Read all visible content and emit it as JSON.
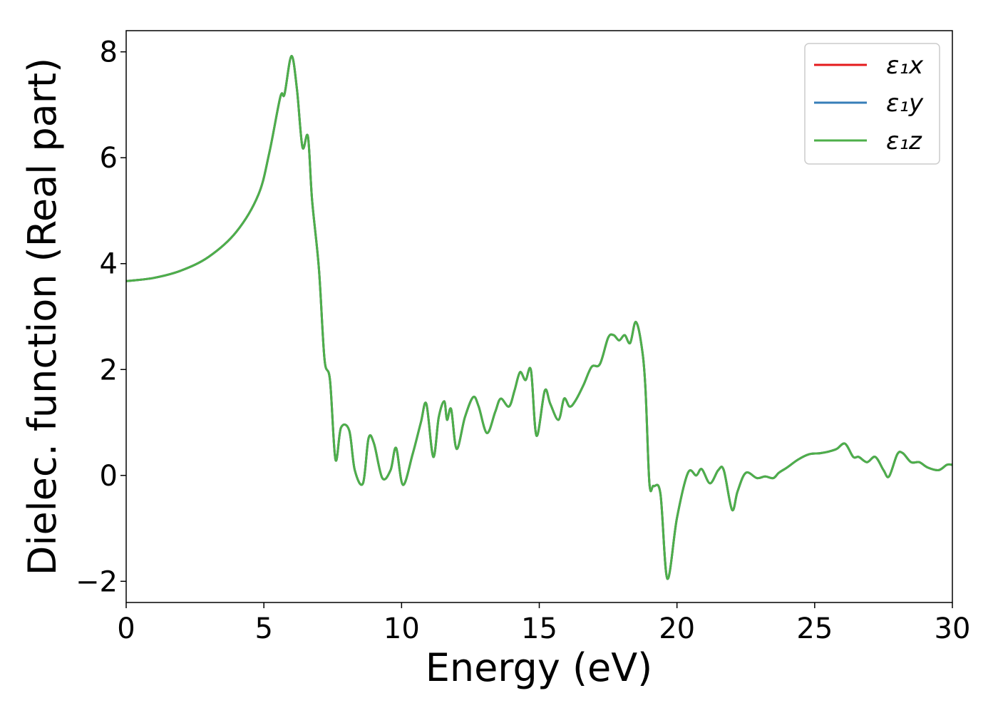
{
  "chart_data": {
    "type": "line",
    "title": "",
    "xlabel": "Energy (eV)",
    "ylabel": "Dielec. function (Real part)",
    "xlim": [
      0,
      30
    ],
    "ylim": [
      -2.4,
      8.4
    ],
    "xticks": [
      0,
      5,
      10,
      15,
      20,
      25,
      30
    ],
    "xtick_labels": [
      "0",
      "5",
      "10",
      "15",
      "20",
      "25",
      "30"
    ],
    "yticks": [
      -2,
      0,
      2,
      4,
      6,
      8
    ],
    "ytick_labels": [
      "−2",
      "0",
      "2",
      "4",
      "6",
      "8"
    ],
    "grid": false,
    "legend_position": "top-right",
    "x": [
      0,
      1,
      2,
      3,
      4,
      4.8,
      5.2,
      5.6,
      5.75,
      6.0,
      6.2,
      6.4,
      6.6,
      6.75,
      7.0,
      7.2,
      7.4,
      7.6,
      7.8,
      8.1,
      8.3,
      8.6,
      8.8,
      9.0,
      9.3,
      9.6,
      9.8,
      10.05,
      10.4,
      10.7,
      10.9,
      11.15,
      11.35,
      11.55,
      11.65,
      11.8,
      12.0,
      12.3,
      12.6,
      12.8,
      13.1,
      13.4,
      13.6,
      13.9,
      14.1,
      14.3,
      14.5,
      14.7,
      14.9,
      15.2,
      15.4,
      15.7,
      15.9,
      16.1,
      16.3,
      16.6,
      16.9,
      17.2,
      17.5,
      17.7,
      17.9,
      18.1,
      18.3,
      18.5,
      18.7,
      18.85,
      19.0,
      19.15,
      19.4,
      19.65,
      20.0,
      20.4,
      20.7,
      20.9,
      21.2,
      21.5,
      21.7,
      22.0,
      22.2,
      22.5,
      22.9,
      23.2,
      23.5,
      23.7,
      24.0,
      24.4,
      24.8,
      25.2,
      25.5,
      25.8,
      26.1,
      26.4,
      26.6,
      26.9,
      27.2,
      27.5,
      27.7,
      28.0,
      28.2,
      28.5,
      28.8,
      29.1,
      29.5,
      29.8,
      30.0
    ],
    "series": [
      {
        "name": "ε₁x",
        "color": "#e41a1c",
        "values": [
          3.67,
          3.73,
          3.87,
          4.13,
          4.6,
          5.3,
          6.1,
          7.15,
          7.2,
          7.92,
          7.3,
          6.2,
          6.4,
          5.2,
          3.9,
          2.2,
          1.8,
          0.3,
          0.9,
          0.85,
          0.1,
          -0.15,
          0.7,
          0.6,
          -0.05,
          0.1,
          0.52,
          -0.18,
          0.4,
          1.0,
          1.35,
          0.35,
          1.1,
          1.4,
          1.05,
          1.25,
          0.5,
          1.1,
          1.48,
          1.3,
          0.8,
          1.2,
          1.45,
          1.3,
          1.6,
          1.95,
          1.8,
          1.98,
          0.75,
          1.6,
          1.35,
          1.05,
          1.45,
          1.3,
          1.4,
          1.7,
          2.05,
          2.1,
          2.6,
          2.65,
          2.55,
          2.65,
          2.5,
          2.9,
          2.5,
          1.7,
          -0.15,
          -0.2,
          -0.35,
          -1.95,
          -0.8,
          0.05,
          0.0,
          0.12,
          -0.15,
          0.1,
          0.1,
          -0.65,
          -0.3,
          0.05,
          -0.05,
          -0.02,
          -0.05,
          0.05,
          0.15,
          0.3,
          0.4,
          0.42,
          0.45,
          0.5,
          0.6,
          0.35,
          0.35,
          0.25,
          0.35,
          0.1,
          -0.02,
          0.4,
          0.42,
          0.25,
          0.25,
          0.15,
          0.1,
          0.2,
          0.2
        ]
      },
      {
        "name": "ε₁y",
        "color": "#377eb8",
        "values": [
          3.67,
          3.73,
          3.87,
          4.13,
          4.6,
          5.3,
          6.1,
          7.15,
          7.2,
          7.92,
          7.3,
          6.2,
          6.4,
          5.2,
          3.9,
          2.2,
          1.8,
          0.3,
          0.9,
          0.85,
          0.1,
          -0.15,
          0.7,
          0.6,
          -0.05,
          0.1,
          0.52,
          -0.18,
          0.4,
          1.0,
          1.35,
          0.35,
          1.1,
          1.4,
          1.05,
          1.25,
          0.5,
          1.1,
          1.48,
          1.3,
          0.8,
          1.2,
          1.45,
          1.3,
          1.6,
          1.95,
          1.8,
          1.98,
          0.75,
          1.6,
          1.35,
          1.05,
          1.45,
          1.3,
          1.4,
          1.7,
          2.05,
          2.1,
          2.6,
          2.65,
          2.55,
          2.65,
          2.5,
          2.9,
          2.5,
          1.7,
          -0.15,
          -0.2,
          -0.35,
          -1.95,
          -0.8,
          0.05,
          0.0,
          0.12,
          -0.15,
          0.1,
          0.1,
          -0.65,
          -0.3,
          0.05,
          -0.05,
          -0.02,
          -0.05,
          0.05,
          0.15,
          0.3,
          0.4,
          0.42,
          0.45,
          0.5,
          0.6,
          0.35,
          0.35,
          0.25,
          0.35,
          0.1,
          -0.02,
          0.4,
          0.42,
          0.25,
          0.25,
          0.15,
          0.1,
          0.2,
          0.2
        ]
      },
      {
        "name": "ε₁z",
        "color": "#4daf4a",
        "values": [
          3.67,
          3.73,
          3.87,
          4.13,
          4.6,
          5.3,
          6.1,
          7.15,
          7.2,
          7.92,
          7.3,
          6.2,
          6.4,
          5.2,
          3.9,
          2.2,
          1.8,
          0.3,
          0.9,
          0.85,
          0.1,
          -0.15,
          0.7,
          0.6,
          -0.05,
          0.1,
          0.52,
          -0.18,
          0.4,
          1.0,
          1.35,
          0.35,
          1.1,
          1.4,
          1.05,
          1.25,
          0.5,
          1.1,
          1.48,
          1.3,
          0.8,
          1.2,
          1.45,
          1.3,
          1.6,
          1.95,
          1.8,
          1.98,
          0.75,
          1.6,
          1.35,
          1.05,
          1.45,
          1.3,
          1.4,
          1.7,
          2.05,
          2.1,
          2.6,
          2.65,
          2.55,
          2.65,
          2.5,
          2.9,
          2.5,
          1.7,
          -0.15,
          -0.2,
          -0.35,
          -1.95,
          -0.8,
          0.05,
          0.0,
          0.12,
          -0.15,
          0.1,
          0.1,
          -0.65,
          -0.3,
          0.05,
          -0.05,
          -0.02,
          -0.05,
          0.05,
          0.15,
          0.3,
          0.4,
          0.42,
          0.45,
          0.5,
          0.6,
          0.35,
          0.35,
          0.25,
          0.35,
          0.1,
          -0.02,
          0.4,
          0.42,
          0.25,
          0.25,
          0.15,
          0.1,
          0.2,
          0.2
        ]
      }
    ]
  }
}
